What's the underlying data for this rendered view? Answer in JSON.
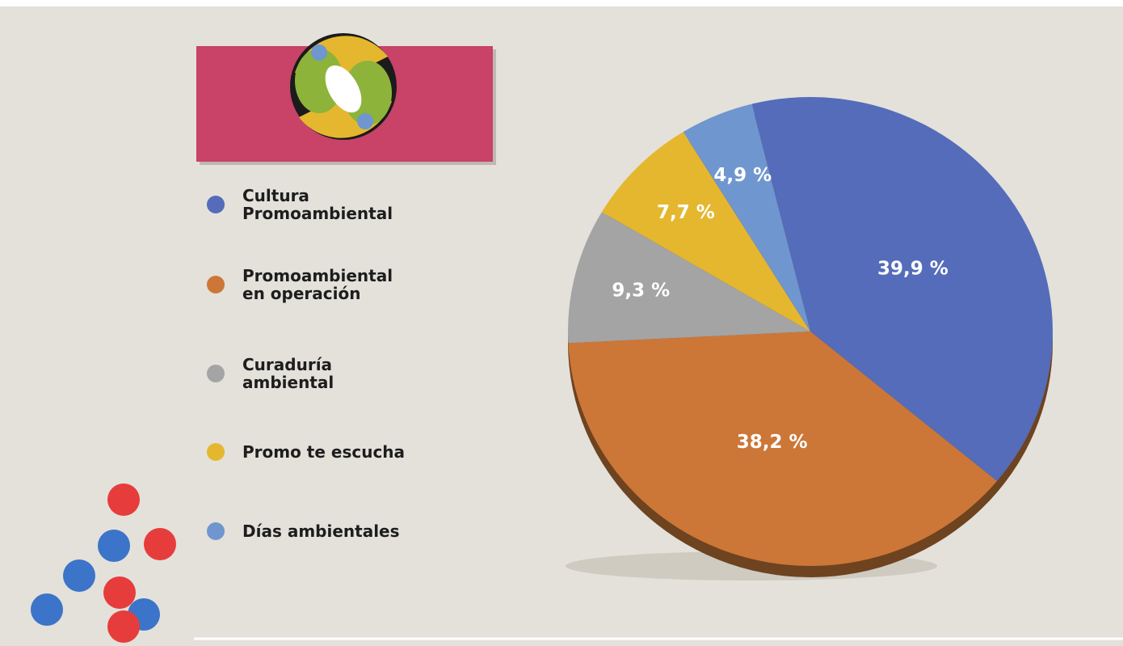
{
  "chart_data": {
    "type": "pie",
    "categories": [
      "Cultura Promoambiental",
      "Promoambiental en operación",
      "Curaduría ambiental",
      "Promo te escucha",
      "Días ambientales"
    ],
    "values": [
      39.9,
      38.2,
      9.3,
      7.7,
      4.9
    ],
    "value_labels": [
      "39,9 %",
      "38,2 %",
      "9,3 %",
      "7,7 %",
      "4,9 %"
    ],
    "colors": [
      "#546cb9",
      "#cc7737",
      "#a4a4a4",
      "#e5b72f",
      "#6f96cf"
    ]
  }
}
